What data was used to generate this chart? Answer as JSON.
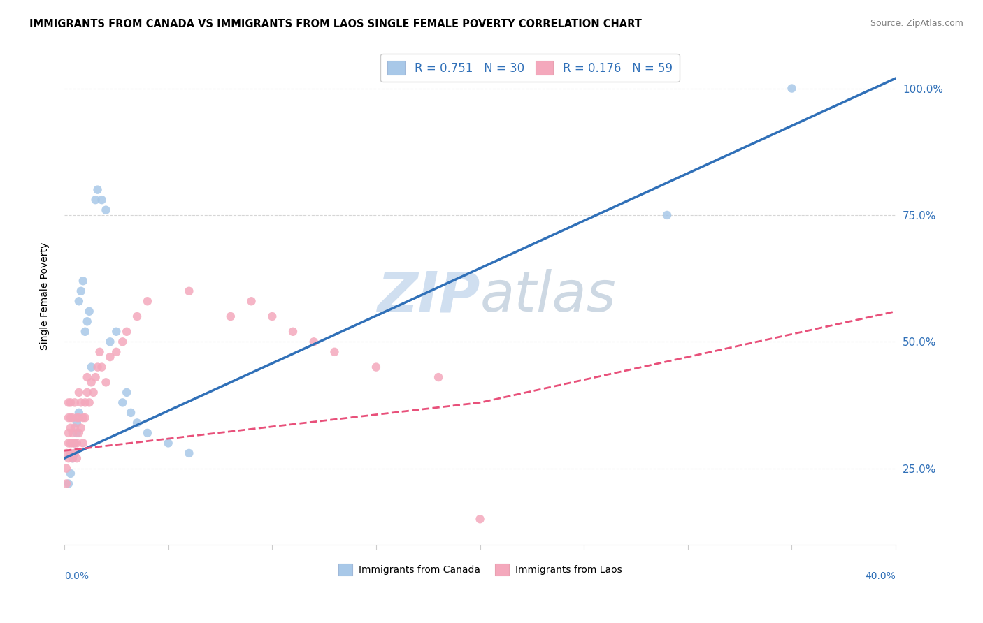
{
  "title": "IMMIGRANTS FROM CANADA VS IMMIGRANTS FROM LAOS SINGLE FEMALE POVERTY CORRELATION CHART",
  "source": "Source: ZipAtlas.com",
  "ylabel": "Single Female Poverty",
  "yticks": [
    0.25,
    0.5,
    0.75,
    1.0
  ],
  "ytick_labels": [
    "25.0%",
    "50.0%",
    "75.0%",
    "100.0%"
  ],
  "color_canada": "#a8c8e8",
  "color_laos": "#f4a8bc",
  "trendline_canada_color": "#3070b8",
  "trendline_laos_color": "#e8507a",
  "watermark_color": "#d0dff0",
  "canada_scatter_x": [
    0.002,
    0.003,
    0.004,
    0.005,
    0.005,
    0.006,
    0.006,
    0.007,
    0.007,
    0.008,
    0.009,
    0.01,
    0.011,
    0.012,
    0.013,
    0.015,
    0.016,
    0.018,
    0.02,
    0.022,
    0.025,
    0.028,
    0.03,
    0.032,
    0.035,
    0.04,
    0.05,
    0.06,
    0.29,
    0.35
  ],
  "canada_scatter_y": [
    0.22,
    0.24,
    0.27,
    0.3,
    0.28,
    0.32,
    0.34,
    0.36,
    0.58,
    0.6,
    0.62,
    0.52,
    0.54,
    0.56,
    0.45,
    0.78,
    0.8,
    0.78,
    0.76,
    0.5,
    0.52,
    0.38,
    0.4,
    0.36,
    0.34,
    0.32,
    0.3,
    0.28,
    0.75,
    1.0
  ],
  "laos_scatter_x": [
    0.001,
    0.001,
    0.001,
    0.002,
    0.002,
    0.002,
    0.002,
    0.002,
    0.003,
    0.003,
    0.003,
    0.003,
    0.003,
    0.004,
    0.004,
    0.004,
    0.004,
    0.005,
    0.005,
    0.005,
    0.005,
    0.006,
    0.006,
    0.006,
    0.007,
    0.007,
    0.007,
    0.008,
    0.008,
    0.009,
    0.009,
    0.01,
    0.01,
    0.011,
    0.011,
    0.012,
    0.013,
    0.014,
    0.015,
    0.016,
    0.017,
    0.018,
    0.02,
    0.022,
    0.025,
    0.028,
    0.03,
    0.035,
    0.04,
    0.06,
    0.08,
    0.09,
    0.1,
    0.11,
    0.12,
    0.13,
    0.15,
    0.18,
    0.2
  ],
  "laos_scatter_y": [
    0.22,
    0.25,
    0.28,
    0.27,
    0.3,
    0.32,
    0.35,
    0.38,
    0.28,
    0.3,
    0.33,
    0.35,
    0.38,
    0.27,
    0.3,
    0.32,
    0.35,
    0.28,
    0.3,
    0.33,
    0.38,
    0.27,
    0.3,
    0.35,
    0.32,
    0.35,
    0.4,
    0.33,
    0.38,
    0.3,
    0.35,
    0.35,
    0.38,
    0.4,
    0.43,
    0.38,
    0.42,
    0.4,
    0.43,
    0.45,
    0.48,
    0.45,
    0.42,
    0.47,
    0.48,
    0.5,
    0.52,
    0.55,
    0.58,
    0.6,
    0.55,
    0.58,
    0.55,
    0.52,
    0.5,
    0.48,
    0.45,
    0.43,
    0.15
  ],
  "canada_trend_x": [
    0.0,
    0.4
  ],
  "canada_trend_y": [
    0.27,
    1.02
  ],
  "laos_trend_x": [
    0.0,
    0.2,
    0.4
  ],
  "laos_trend_y": [
    0.285,
    0.38,
    0.56
  ],
  "xlim": [
    0.0,
    0.4
  ],
  "ylim": [
    0.1,
    1.08
  ],
  "figsize": [
    14.06,
    8.92
  ],
  "dpi": 100
}
